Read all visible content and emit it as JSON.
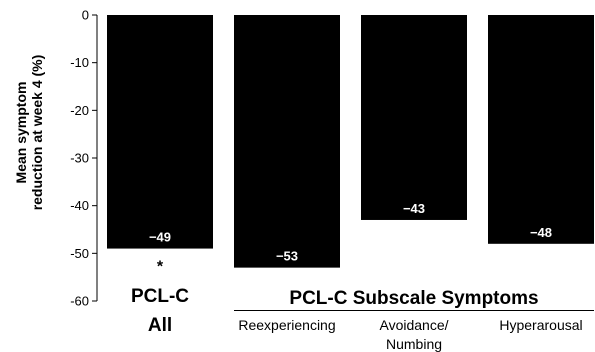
{
  "chart_data": {
    "type": "bar",
    "title": "",
    "ylabel": [
      "Mean symptom",
      "reduction at week 4 (%)"
    ],
    "ylim": [
      -60,
      0
    ],
    "yticks": [
      0,
      -10,
      -20,
      -30,
      -40,
      -50,
      -60
    ],
    "grid": false,
    "colors": {
      "bar": "#000000",
      "bar_label": "#ffffff"
    },
    "bars": [
      {
        "category": [
          "PCL-C",
          "All"
        ],
        "value": -49,
        "label": "−49",
        "annotation": "*"
      },
      {
        "category": [
          "Reexperiencing"
        ],
        "value": -53,
        "label": "−53"
      },
      {
        "category": [
          "Avoidance/",
          "Numbing"
        ],
        "value": -43,
        "label": "−43"
      },
      {
        "category": [
          "Hyperarousal"
        ],
        "value": -48,
        "label": "−48"
      }
    ],
    "group_label": "PCL-C Subscale Symptoms"
  }
}
